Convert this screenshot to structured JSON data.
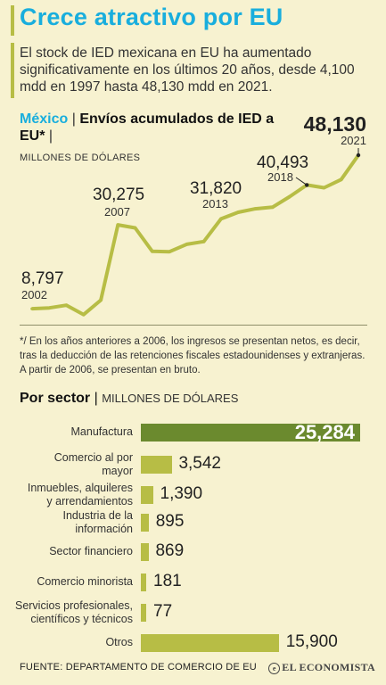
{
  "title": "Crece atractivo por EU",
  "intro": "El stock de IED mexicana en EU ha aumentado significativamente en los últimos 20 años, desde 4,100 mdd en 1997 hasta 48,130 mdd en 2021.",
  "line_chart": {
    "country": "México",
    "separator": "|",
    "title": "Envíos acumulados de IED a EU*",
    "title_sep": "|",
    "unit": "MILLONES DE DÓLARES"
  },
  "chart_data": [
    {
      "type": "line",
      "title": "México | Envíos acumulados de IED a EU*",
      "ylabel": "MILLONES DE DÓLARES",
      "x": [
        2002,
        2003,
        2004,
        2005,
        2006,
        2007,
        2008,
        2009,
        2010,
        2011,
        2012,
        2013,
        2014,
        2015,
        2016,
        2017,
        2018,
        2019,
        2020,
        2021
      ],
      "values": [
        8797,
        9000,
        9700,
        7300,
        11000,
        30275,
        29500,
        23500,
        23400,
        25300,
        26000,
        31820,
        33500,
        34400,
        34800,
        37500,
        40493,
        39800,
        41900,
        48130
      ],
      "annotations": [
        {
          "x": 2002,
          "value": "8,797",
          "year": "2002"
        },
        {
          "x": 2007,
          "value": "30,275",
          "year": "2007"
        },
        {
          "x": 2013,
          "value": "31,820",
          "year": "2013"
        },
        {
          "x": 2018,
          "value": "40,493",
          "year": "2018"
        },
        {
          "x": 2021,
          "value": "48,130",
          "year": "2021"
        }
      ],
      "color": "#b7bd45"
    },
    {
      "type": "bar",
      "title": "Por sector",
      "ylabel": "MILLONES DE DÓLARES",
      "categories": [
        "Manufactura",
        "Comercio al por mayor",
        "Inmuebles, alquileres y arrendamientos",
        "Industria de la información",
        "Sector financiero",
        "Comercio minorista",
        "Servicios profesionales, científicos y técnicos",
        "Otros"
      ],
      "values": [
        25284,
        3542,
        1390,
        895,
        869,
        181,
        77,
        15900
      ],
      "labels": [
        "25,284",
        "3,542",
        "1,390",
        "895",
        "869",
        "181",
        "77",
        "15,900"
      ],
      "category_lines": [
        [
          "Manufactura"
        ],
        [
          "Comercio al por",
          "mayor"
        ],
        [
          "Inmuebles, alquileres",
          "y arrendamientos"
        ],
        [
          "Industria de la",
          "información"
        ],
        [
          "Sector financiero"
        ],
        [
          "Comercio minorista"
        ],
        [
          "Servicios profesionales,",
          "científicos y técnicos"
        ],
        [
          "Otros"
        ]
      ],
      "colors": {
        "top": "#6b8a2e",
        "default": "#b7bd45"
      }
    }
  ],
  "note": "*/ En los años anteriores a 2006, los ingresos se presentan netos, es decir, tras la deducción de las retenciones fiscales estadounidenses y extranjeras. A partir de 2006, se presentan en bruto.",
  "sector": {
    "title": "Por sector",
    "separator": "|",
    "unit": "MILLONES DE DÓLARES"
  },
  "footer": "FUENTE: DEPARTAMENTO DE COMERCIO DE EU",
  "logo": "EL ECONOMISTA",
  "logo_mark": "e"
}
